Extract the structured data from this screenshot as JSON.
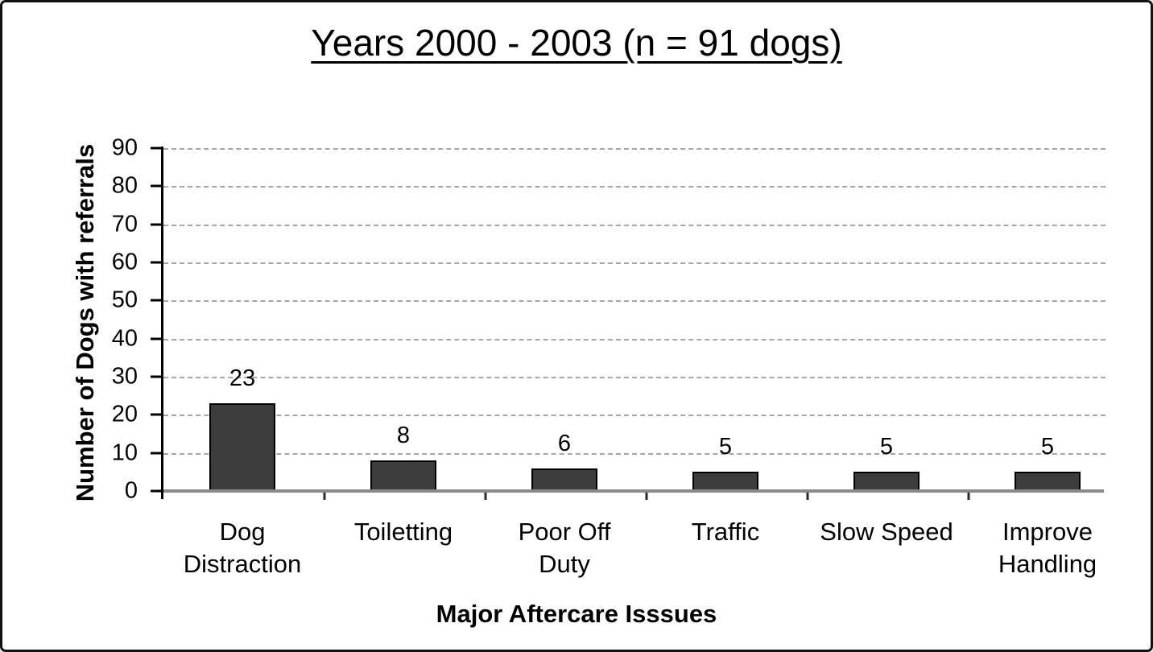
{
  "chart_data": {
    "type": "bar",
    "title": "Years 2000 - 2003 (n = 91 dogs)",
    "xlabel": "Major Aftercare Isssues",
    "ylabel": "Number of Dogs with referrals",
    "categories": [
      "Dog Distraction",
      "Toiletting",
      "Poor Off Duty",
      "Traffic",
      "Slow Speed",
      "Improve Handling"
    ],
    "values": [
      23,
      8,
      6,
      5,
      5,
      5
    ],
    "ylim": [
      0,
      90
    ],
    "ytick_step": 10,
    "yticks": [
      90,
      80,
      70,
      60,
      50,
      40,
      30,
      20,
      10,
      0
    ],
    "grid": "horizontal-dashed",
    "legend": "none",
    "bar_color": "#3d3d3d",
    "bar_border_color": "#000000",
    "gridline_color": "#a6a6a6",
    "axis_color": "#000000",
    "baseline_color": "#8a8a8a",
    "background_color": "#ffffff",
    "frame_border_color": "#111111"
  }
}
